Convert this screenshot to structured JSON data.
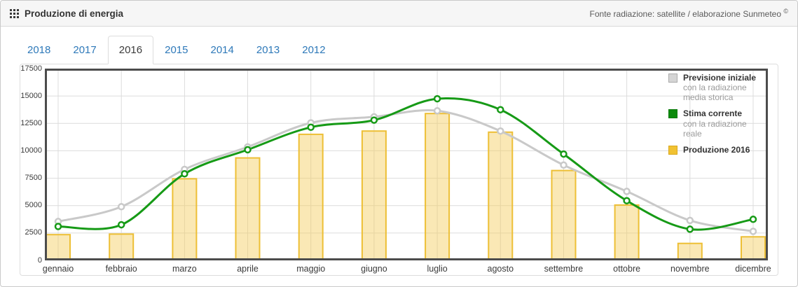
{
  "header": {
    "title": "Produzione di energia",
    "source_note": "Fonte radiazione: satellite / elaborazione Sunmeteo ",
    "source_symbol": "©"
  },
  "tabs": [
    {
      "label": "2018",
      "active": false
    },
    {
      "label": "2017",
      "active": false
    },
    {
      "label": "2016",
      "active": true
    },
    {
      "label": "2015",
      "active": false
    },
    {
      "label": "2014",
      "active": false
    },
    {
      "label": "2013",
      "active": false
    },
    {
      "label": "2012",
      "active": false
    }
  ],
  "legend": {
    "items": [
      {
        "label": "Previsione iniziale",
        "sublabel": "con la radiazione media storica",
        "color": "#d5d5d5",
        "border": "#ababab"
      },
      {
        "label": "Stima corrente",
        "sublabel": "con la radiazione reale",
        "color": "#0b8a0b",
        "border": "#0a7a0a"
      },
      {
        "label": "Produzione 2016",
        "sublabel": "",
        "color": "#f1c232",
        "border": "#d9a81e"
      }
    ]
  },
  "chart_data": {
    "type": "bar",
    "title": "Produzione di energia 2016",
    "categories": [
      "gennaio",
      "febbraio",
      "marzo",
      "aprile",
      "maggio",
      "giugno",
      "luglio",
      "agosto",
      "settembre",
      "ottobre",
      "novembre",
      "dicembre"
    ],
    "series": [
      {
        "name": "Previsione iniziale",
        "type": "line",
        "color": "#c9c9c9",
        "values": [
          3550,
          4900,
          8300,
          10350,
          12550,
          13100,
          13650,
          11800,
          8700,
          6300,
          3650,
          2650
        ]
      },
      {
        "name": "Stima corrente",
        "type": "line",
        "color": "#169a16",
        "values": [
          3100,
          3250,
          7900,
          10100,
          12150,
          12800,
          14750,
          13750,
          9700,
          5450,
          2850,
          3750
        ]
      },
      {
        "name": "Produzione 2016",
        "type": "bar",
        "color": "#f5cc5c",
        "border_color": "#edbf35",
        "values": [
          2350,
          2400,
          7450,
          9350,
          11500,
          11800,
          13400,
          11700,
          8200,
          5050,
          1550,
          2150
        ]
      }
    ],
    "xlabel": "",
    "ylabel": "",
    "ylim": [
      0,
      17500
    ],
    "ytick_step": 2500,
    "yticks": [
      0,
      2500,
      5000,
      7500,
      10000,
      12500,
      15000,
      17500
    ],
    "grid": true,
    "legend_position": "top-right",
    "colors": {
      "grid": "#dcdcdc",
      "plot_border": "#4c4c4c"
    }
  }
}
